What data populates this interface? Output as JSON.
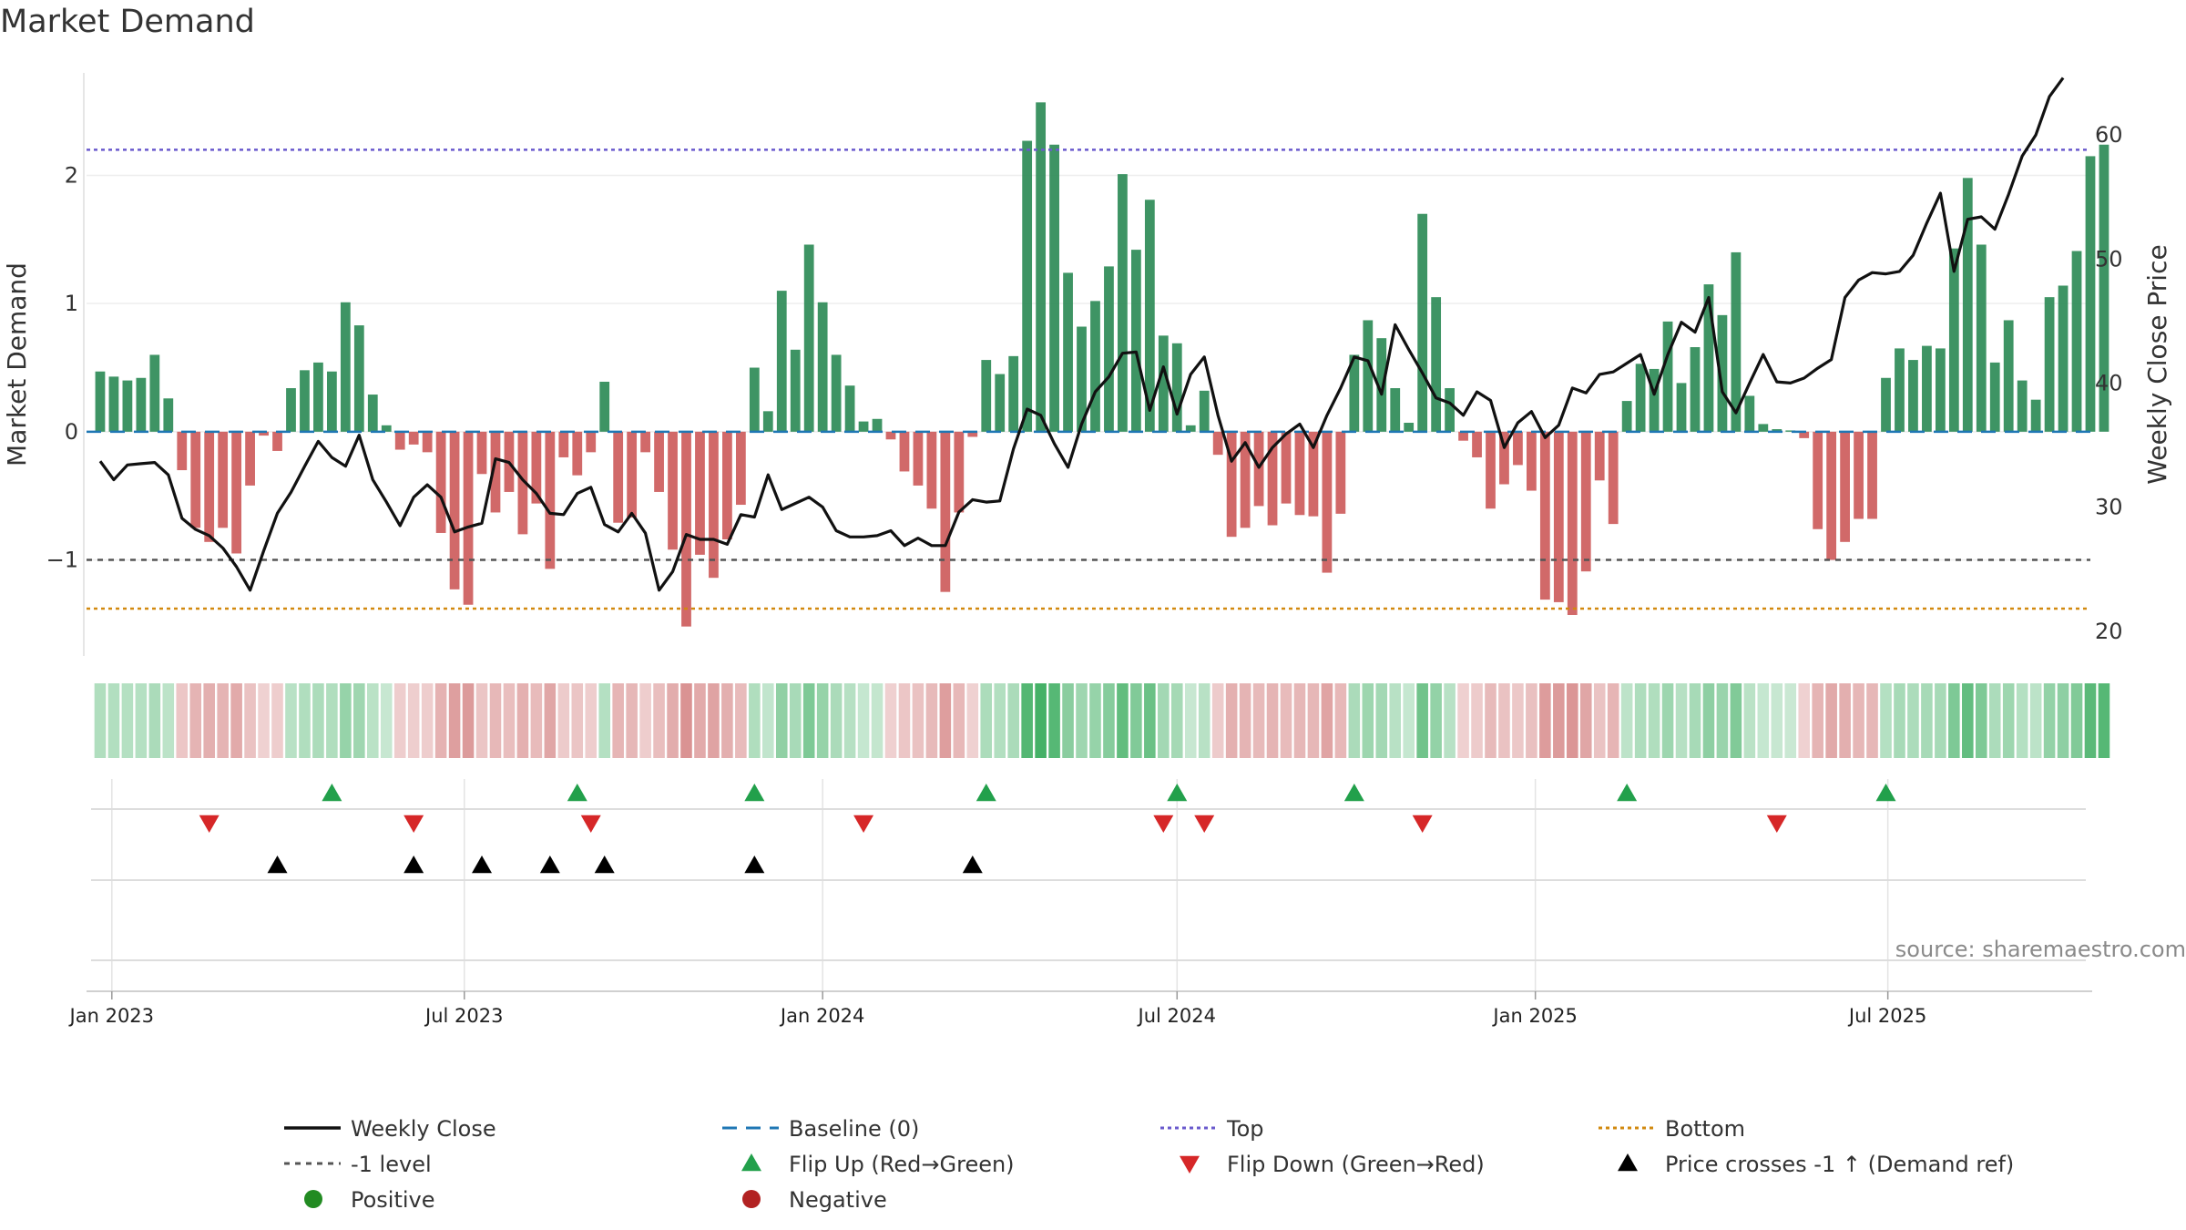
{
  "chart_data": {
    "type": "bar",
    "title": "Market Demand",
    "ylabel": "Market Demand",
    "y2label": "Weekly Close Price",
    "ylim": [
      -1.75,
      2.8
    ],
    "y_ticks": [
      -1,
      0,
      1,
      2
    ],
    "y_tick_labels": [
      "−1",
      "0",
      "1",
      "2"
    ],
    "y2lim": [
      18,
      65
    ],
    "y2_ticks": [
      20,
      30,
      40,
      50,
      60
    ],
    "y2_tick_labels": [
      "20",
      "30",
      "40",
      "50",
      "60"
    ],
    "x_tick_labels": [
      "Jan 2023",
      "Jul 2023",
      "Jan 2024",
      "Jul 2024",
      "Jan 2025",
      "Jul 2025"
    ],
    "x_tick_dates": [
      "2023-01-01",
      "2023-07-01",
      "2024-01-01",
      "2024-07-01",
      "2025-01-01",
      "2025-07-01"
    ],
    "x_range": [
      "2022-12-19",
      "2025-10-13"
    ],
    "weekly_dates_start": "2022-12-26",
    "weekly_dates_step_days": 7,
    "demand": [
      0.47,
      0.43,
      0.4,
      0.42,
      0.6,
      0.26,
      -0.3,
      -0.75,
      -0.86,
      -0.75,
      -0.95,
      -0.42,
      -0.03,
      -0.15,
      0.34,
      0.48,
      0.54,
      0.47,
      1.01,
      0.83,
      0.29,
      0.05,
      -0.14,
      -0.1,
      -0.16,
      -0.79,
      -1.23,
      -1.35,
      -0.33,
      -0.63,
      -0.47,
      -0.8,
      -0.56,
      -1.07,
      -0.2,
      -0.34,
      -0.16,
      0.39,
      -0.71,
      -0.67,
      -0.16,
      -0.47,
      -0.92,
      -1.52,
      -0.96,
      -1.14,
      -0.84,
      -0.57,
      0.5,
      0.16,
      1.1,
      0.64,
      1.46,
      1.01,
      0.6,
      0.36,
      0.08,
      0.1,
      -0.06,
      -0.31,
      -0.42,
      -0.6,
      -1.25,
      -0.63,
      -0.04,
      0.56,
      0.45,
      0.59,
      2.27,
      2.57,
      2.24,
      1.24,
      0.82,
      1.02,
      1.29,
      2.01,
      1.42,
      1.81,
      0.75,
      0.69,
      0.05,
      0.32,
      -0.18,
      -0.82,
      -0.75,
      -0.58,
      -0.73,
      -0.56,
      -0.65,
      -0.66,
      -1.1,
      -0.64,
      0.6,
      0.87,
      0.73,
      0.34,
      0.07,
      1.7,
      1.05,
      0.34,
      -0.07,
      -0.2,
      -0.6,
      -0.41,
      -0.26,
      -0.46,
      -1.31,
      -1.33,
      -1.43,
      -1.09,
      -0.38,
      -0.72,
      0.24,
      0.53,
      0.49,
      0.86,
      0.38,
      0.66,
      1.15,
      0.91,
      1.4,
      0.28,
      0.06,
      0.02,
      0.01,
      -0.05,
      -0.76,
      -1.0,
      -0.86,
      -0.68,
      -0.68,
      0.42,
      0.65,
      0.56,
      0.67,
      0.65,
      1.43,
      1.98,
      1.46,
      0.54,
      0.87,
      0.4,
      0.25,
      1.05,
      1.14,
      1.41,
      2.15,
      2.24
    ],
    "weekly_close": [
      33.7,
      32.2,
      33.4,
      33.5,
      33.6,
      32.6,
      29.1,
      28.2,
      27.7,
      26.7,
      25.2,
      23.3,
      26.5,
      29.5,
      31.2,
      33.3,
      35.3,
      34.0,
      33.3,
      35.8,
      32.2,
      30.4,
      28.5,
      30.8,
      31.8,
      30.8,
      28.0,
      28.4,
      28.7,
      33.9,
      33.6,
      32.2,
      31.1,
      29.5,
      29.4,
      31.1,
      31.6,
      28.6,
      28.0,
      29.5,
      27.9,
      23.3,
      24.8,
      27.8,
      27.4,
      27.4,
      27.0,
      29.4,
      29.2,
      32.6,
      29.8,
      30.3,
      30.8,
      30.0,
      28.1,
      27.6,
      27.6,
      27.7,
      28.1,
      26.9,
      27.5,
      26.9,
      26.9,
      29.6,
      30.6,
      30.4,
      30.5,
      34.7,
      37.9,
      37.4,
      35.1,
      33.2,
      36.7,
      39.3,
      40.5,
      42.4,
      42.5,
      37.8,
      41.3,
      37.5,
      40.7,
      42.1,
      37.4,
      33.7,
      35.2,
      33.2,
      34.8,
      35.9,
      36.7,
      34.8,
      37.4,
      39.6,
      42.1,
      41.8,
      39.1,
      44.7,
      42.7,
      40.8,
      38.8,
      38.4,
      37.4,
      39.3,
      38.6,
      34.8,
      36.8,
      37.7,
      35.6,
      36.6,
      39.6,
      39.2,
      40.7,
      40.9,
      41.6,
      42.3,
      39.1,
      42.3,
      44.9,
      44.1,
      46.9,
      39.3,
      37.6,
      40.0,
      42.3,
      40.1,
      40.0,
      40.4,
      41.2,
      41.9,
      46.9,
      48.3,
      48.9,
      48.8,
      49.0,
      50.3,
      52.9,
      55.3,
      49.0,
      53.2,
      53.4,
      52.4,
      55.2,
      58.3,
      60.0,
      63.1,
      64.6
    ],
    "series": [
      {
        "name": "Weekly Close"
      },
      {
        "name": "Baseline (0)"
      },
      {
        "name": "Top",
        "value": 2.2
      },
      {
        "name": "Bottom",
        "value": -1.38
      },
      {
        "name": "-1 level",
        "value": -1.0
      }
    ],
    "markers": {
      "flip_up_dates": [
        "2023-04-24",
        "2023-08-28",
        "2023-11-27",
        "2024-03-25",
        "2024-07-01",
        "2024-09-30",
        "2025-02-17",
        "2025-06-30"
      ],
      "flip_down_dates": [
        "2023-02-20",
        "2023-06-05",
        "2023-09-04",
        "2024-01-22",
        "2024-06-24",
        "2024-07-15",
        "2024-11-04",
        "2025-05-05"
      ],
      "price_cross_dates": [
        "2023-03-27",
        "2023-06-05",
        "2023-07-10",
        "2023-08-14",
        "2023-09-11",
        "2023-11-27",
        "2024-03-18"
      ]
    },
    "legend": [
      {
        "label": "Weekly Close",
        "symbol": "solid-line"
      },
      {
        "label": "Baseline (0)",
        "symbol": "dashed-line"
      },
      {
        "label": "Top",
        "symbol": "dotted-line"
      },
      {
        "label": "Bottom",
        "symbol": "dotted-line"
      },
      {
        "label": "-1 level",
        "symbol": "dotted-line"
      },
      {
        "label": "Flip Up (Red→Green)",
        "symbol": "triangle-up"
      },
      {
        "label": "Flip Down (Green→Red)",
        "symbol": "triangle-down"
      },
      {
        "label": "Price crosses -1 ↑ (Demand ref)",
        "symbol": "triangle-up"
      },
      {
        "label": "Positive",
        "symbol": "circle"
      },
      {
        "label": "Negative",
        "symbol": "circle"
      }
    ],
    "legend_placement": "bottom",
    "grid": true,
    "source": "source: sharemaestro.com"
  },
  "colors": {
    "positive": "#2e8b57",
    "negative": "#cd5c5c",
    "close_line": "#111111",
    "baseline": "#1f77b4",
    "top": "#6a5acd",
    "bottom": "#d2890f",
    "minus_one": "#555555",
    "flip_up": "#22a04b",
    "flip_down": "#d62728",
    "price_cross": "#000000",
    "positive_dot": "#228b22",
    "negative_dot": "#b22222",
    "source": "#8a8a8a"
  }
}
